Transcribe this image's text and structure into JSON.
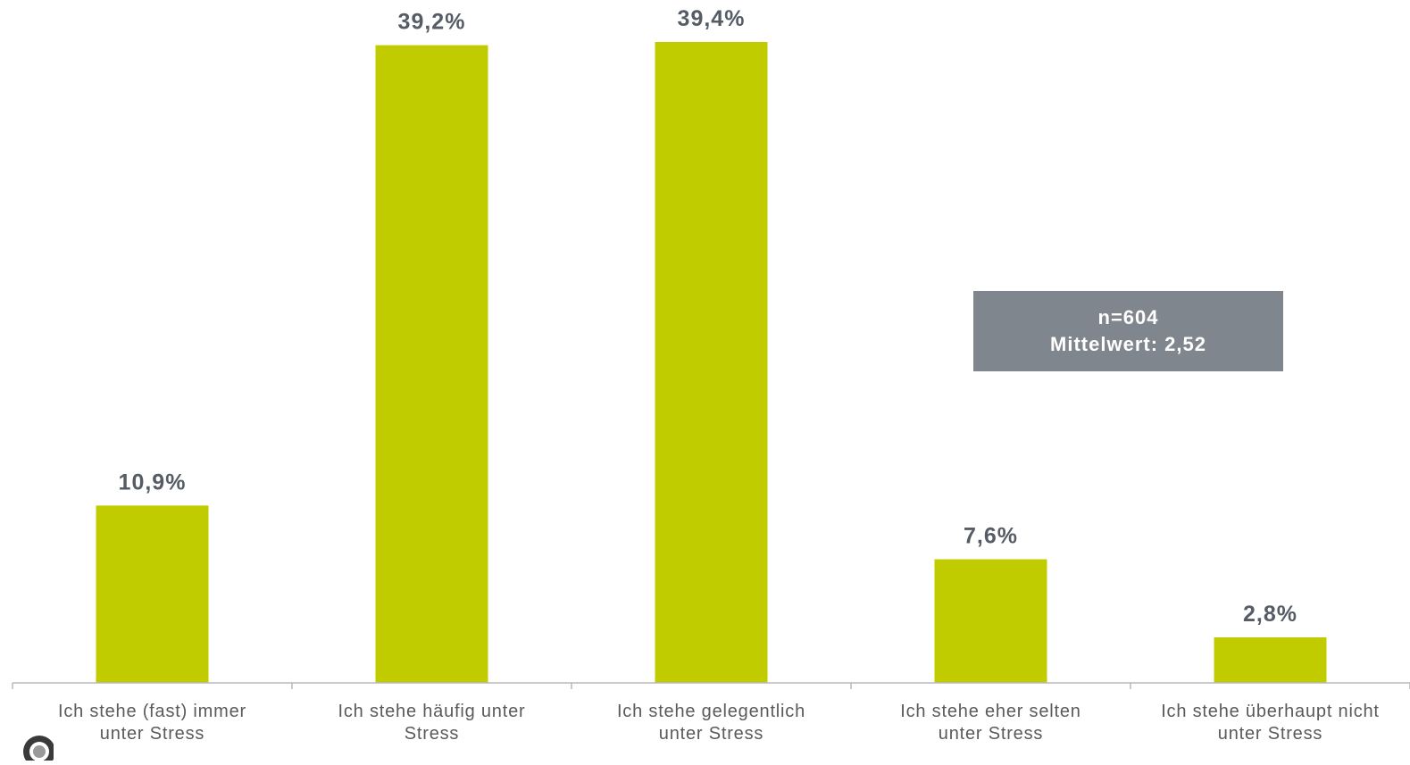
{
  "chart_data": {
    "type": "bar",
    "categories": [
      [
        "Ich stehe (fast) immer",
        "unter Stress"
      ],
      [
        "Ich stehe häufig unter",
        "Stress"
      ],
      [
        "Ich stehe gelegentlich",
        "unter Stress"
      ],
      [
        "Ich stehe eher selten",
        "unter Stress"
      ],
      [
        "Ich stehe überhaupt nicht",
        "unter Stress"
      ]
    ],
    "values": [
      10.9,
      39.2,
      39.4,
      7.6,
      2.8
    ],
    "value_labels": [
      "10,9%",
      "39,2%",
      "39,4%",
      "7,6%",
      "2,8%"
    ],
    "ylim": [
      0,
      40
    ],
    "grid": false,
    "bar_color": "#c0cc00"
  },
  "info_box": {
    "line1": "n=604",
    "line2": "Mittelwert: 2,52",
    "background": "#7f868d"
  },
  "logo": {
    "icon": "circle-logo-icon"
  }
}
